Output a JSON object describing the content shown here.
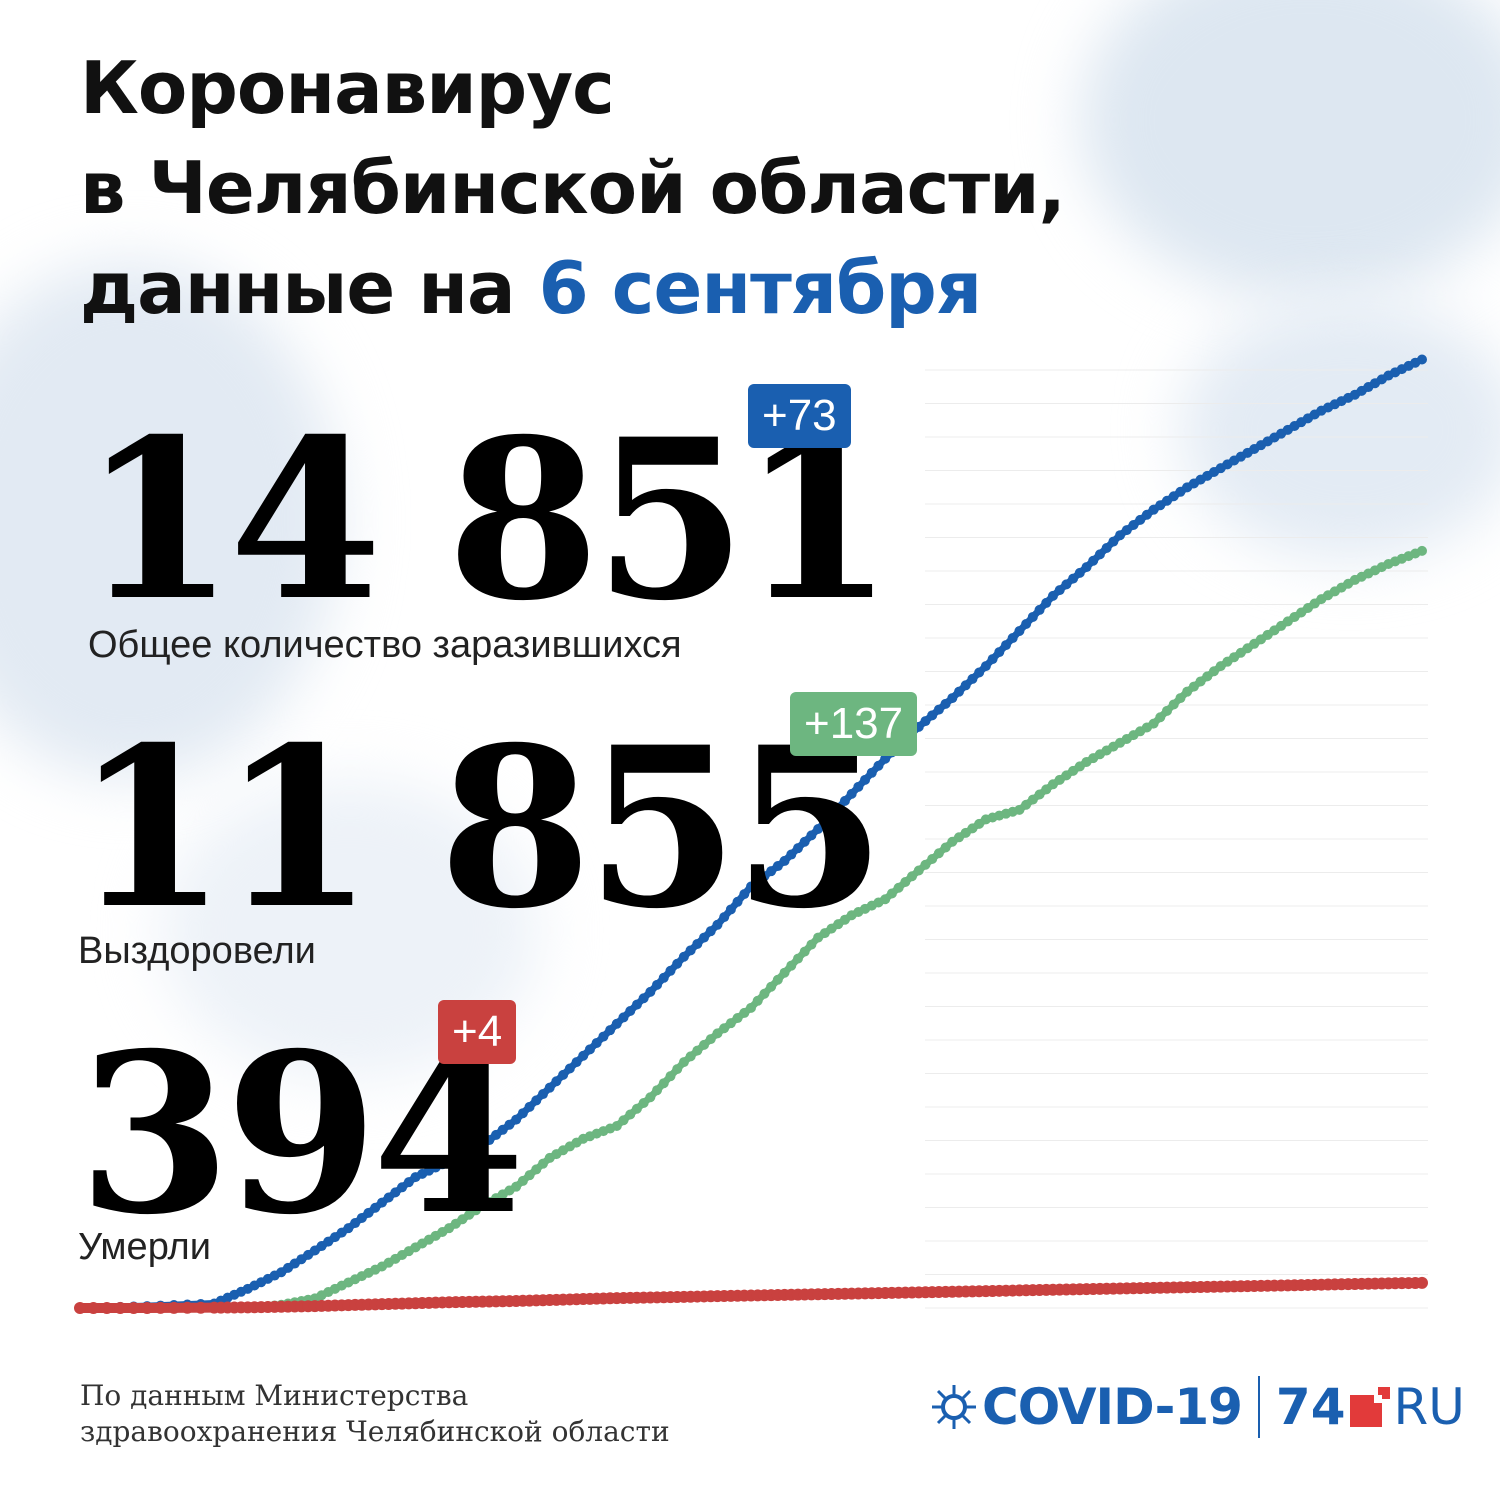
{
  "title": {
    "line1": "Коронавирус",
    "line2": "в Челябинской области,",
    "line3_prefix": "данные на ",
    "line3_date": "6 сентября"
  },
  "stats": {
    "total": {
      "value": "14 851",
      "delta": "+73",
      "label": "Общее количество заразившихся",
      "color": "#1a5fb0"
    },
    "recovered": {
      "value": "11 855",
      "delta": "+137",
      "label": "Выздоровели",
      "color": "#6db680"
    },
    "deaths": {
      "value": "394",
      "delta": "+4",
      "label": "Умерли",
      "color": "#c9413f"
    }
  },
  "source": {
    "line1": "По данным Министерства",
    "line2": "здравоохранения Челябинской области"
  },
  "logo": {
    "covid_text": "COVID-19",
    "site_number": "74",
    "site_suffix": "RU"
  },
  "chart_data": {
    "type": "line",
    "title": "",
    "xlabel": "",
    "ylabel": "",
    "ylim": [
      0,
      15000
    ],
    "grid": true,
    "x": [
      0,
      10,
      20,
      25,
      30,
      35,
      40,
      45,
      50,
      55,
      60,
      65,
      70,
      75,
      80,
      85,
      90,
      95,
      100,
      105,
      110,
      115,
      120,
      125,
      130,
      135,
      140,
      145,
      150,
      155,
      160,
      165,
      170,
      175,
      180,
      185,
      190,
      195,
      200
    ],
    "series": [
      {
        "name": "",
        "color": "#1a5fb0",
        "values": [
          0,
          30,
          70,
          300,
          560,
          900,
          1250,
          1650,
          2050,
          2300,
          2550,
          2950,
          3450,
          3950,
          4450,
          4950,
          5500,
          6000,
          6600,
          7000,
          7500,
          8050,
          8600,
          9100,
          9550,
          10050,
          10600,
          11150,
          11600,
          12100,
          12500,
          12850,
          13150,
          13450,
          13750,
          14050,
          14300,
          14600,
          14851
        ]
      },
      {
        "name": "",
        "color": "#6db680",
        "values": [
          0,
          0,
          0,
          0,
          50,
          150,
          400,
          650,
          950,
          1250,
          1600,
          1900,
          2350,
          2650,
          2850,
          3300,
          3850,
          4300,
          4700,
          5250,
          5800,
          6150,
          6400,
          6850,
          7300,
          7650,
          7800,
          8200,
          8550,
          8850,
          9150,
          9650,
          10050,
          10400,
          10750,
          11100,
          11400,
          11650,
          11855
        ]
      },
      {
        "name": "",
        "color": "#c9413f",
        "values": [
          0,
          0,
          5,
          10,
          20,
          30,
          45,
          60,
          75,
          90,
          100,
          110,
          125,
          140,
          155,
          165,
          175,
          185,
          195,
          205,
          215,
          225,
          235,
          245,
          255,
          265,
          275,
          285,
          295,
          305,
          315,
          325,
          335,
          345,
          355,
          365,
          375,
          385,
          394
        ]
      }
    ]
  }
}
